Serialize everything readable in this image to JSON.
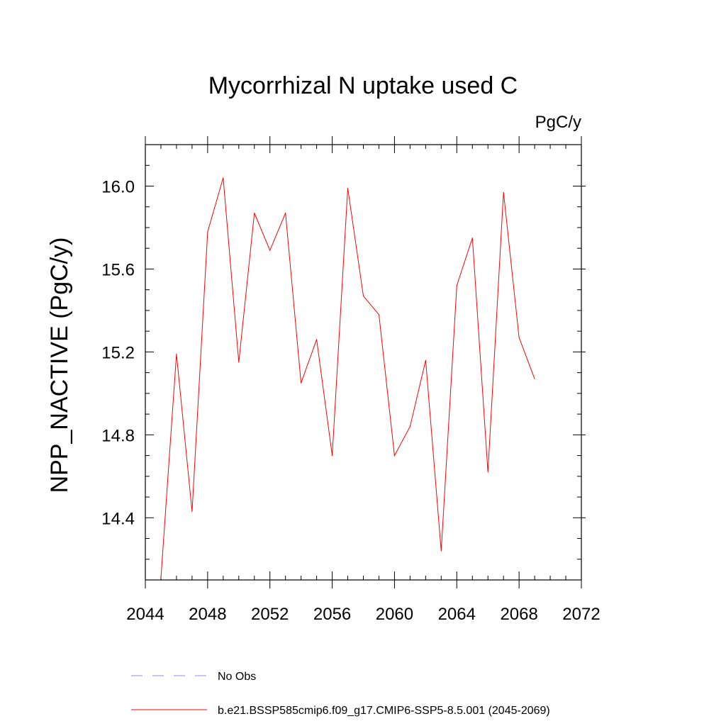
{
  "chart_data": {
    "type": "line",
    "title": "Mycorrhizal N uptake used C",
    "units_label": "PgC/y",
    "ylabel": "NPP_NACTIVE  (PgC/y)",
    "xlabel": "",
    "xlim": [
      2044,
      2072
    ],
    "ylim": [
      14.1,
      16.2
    ],
    "x_ticks": [
      2044,
      2048,
      2052,
      2056,
      2060,
      2064,
      2068,
      2072
    ],
    "y_ticks": [
      14.4,
      14.8,
      15.2,
      15.6,
      16.0
    ],
    "x_tick_labels": [
      "2044",
      "2048",
      "2052",
      "2056",
      "2060",
      "2064",
      "2068",
      "2072"
    ],
    "y_tick_labels": [
      "14.4",
      "14.8",
      "15.2",
      "15.6",
      "16.0"
    ],
    "grid": false,
    "legend_position": "bottom",
    "series": [
      {
        "name": "b.e21.BSSP585cmip6.f09_g17.CMIP6-SSP5-8.5.001 (2045-2069)",
        "color": "#ff0000",
        "dash": "solid",
        "x": [
          2045,
          2046,
          2047,
          2048,
          2049,
          2050,
          2051,
          2052,
          2053,
          2054,
          2055,
          2056,
          2057,
          2058,
          2059,
          2060,
          2061,
          2062,
          2063,
          2064,
          2065,
          2066,
          2067,
          2068,
          2069
        ],
        "y": [
          14.11,
          15.19,
          14.43,
          15.78,
          16.04,
          15.15,
          15.87,
          15.69,
          15.87,
          15.05,
          15.26,
          14.7,
          15.99,
          15.47,
          15.38,
          14.7,
          14.84,
          15.16,
          14.24,
          15.52,
          15.75,
          14.62,
          15.97,
          15.27,
          15.07
        ]
      }
    ],
    "legend": [
      {
        "label": "No Obs",
        "color": "#8888ff",
        "dash": "dashed"
      },
      {
        "label": "b.e21.BSSP585cmip6.f09_g17.CMIP6-SSP5-8.5.001 (2045-2069)",
        "color": "#ff0000",
        "dash": "solid"
      }
    ]
  }
}
